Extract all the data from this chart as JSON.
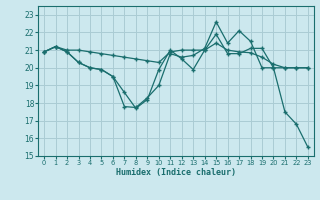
{
  "xlabel": "Humidex (Indice chaleur)",
  "xlim": [
    -0.5,
    23.5
  ],
  "ylim": [
    15,
    23.5
  ],
  "yticks": [
    15,
    16,
    17,
    18,
    19,
    20,
    21,
    22,
    23
  ],
  "xticks": [
    0,
    1,
    2,
    3,
    4,
    5,
    6,
    7,
    8,
    9,
    10,
    11,
    12,
    13,
    14,
    15,
    16,
    17,
    18,
    19,
    20,
    21,
    22,
    23
  ],
  "bg_color": "#cce8ee",
  "grid_color": "#aaccd4",
  "line_color": "#1a6e6e",
  "line1": [
    20.9,
    21.2,
    20.9,
    20.3,
    20.0,
    19.9,
    19.5,
    17.8,
    17.75,
    18.3,
    19.0,
    20.8,
    20.6,
    20.7,
    21.1,
    22.6,
    21.4,
    22.1,
    21.5,
    20.0,
    20.0,
    17.5,
    16.8,
    15.5
  ],
  "line2": [
    20.9,
    21.2,
    21.0,
    21.0,
    20.9,
    20.8,
    20.7,
    20.6,
    20.5,
    20.4,
    20.3,
    20.9,
    21.0,
    21.0,
    21.0,
    21.4,
    21.0,
    20.9,
    20.85,
    20.6,
    20.2,
    20.0,
    20.0,
    20.0
  ],
  "line3": [
    20.9,
    21.2,
    20.9,
    20.3,
    20.0,
    19.9,
    19.5,
    18.6,
    17.7,
    18.2,
    19.9,
    21.0,
    20.5,
    19.9,
    21.0,
    21.9,
    20.8,
    20.8,
    21.1,
    21.1,
    20.0,
    20.0,
    20.0,
    20.0
  ],
  "x": [
    0,
    1,
    2,
    3,
    4,
    5,
    6,
    7,
    8,
    9,
    10,
    11,
    12,
    13,
    14,
    15,
    16,
    17,
    18,
    19,
    20,
    21,
    22,
    23
  ]
}
